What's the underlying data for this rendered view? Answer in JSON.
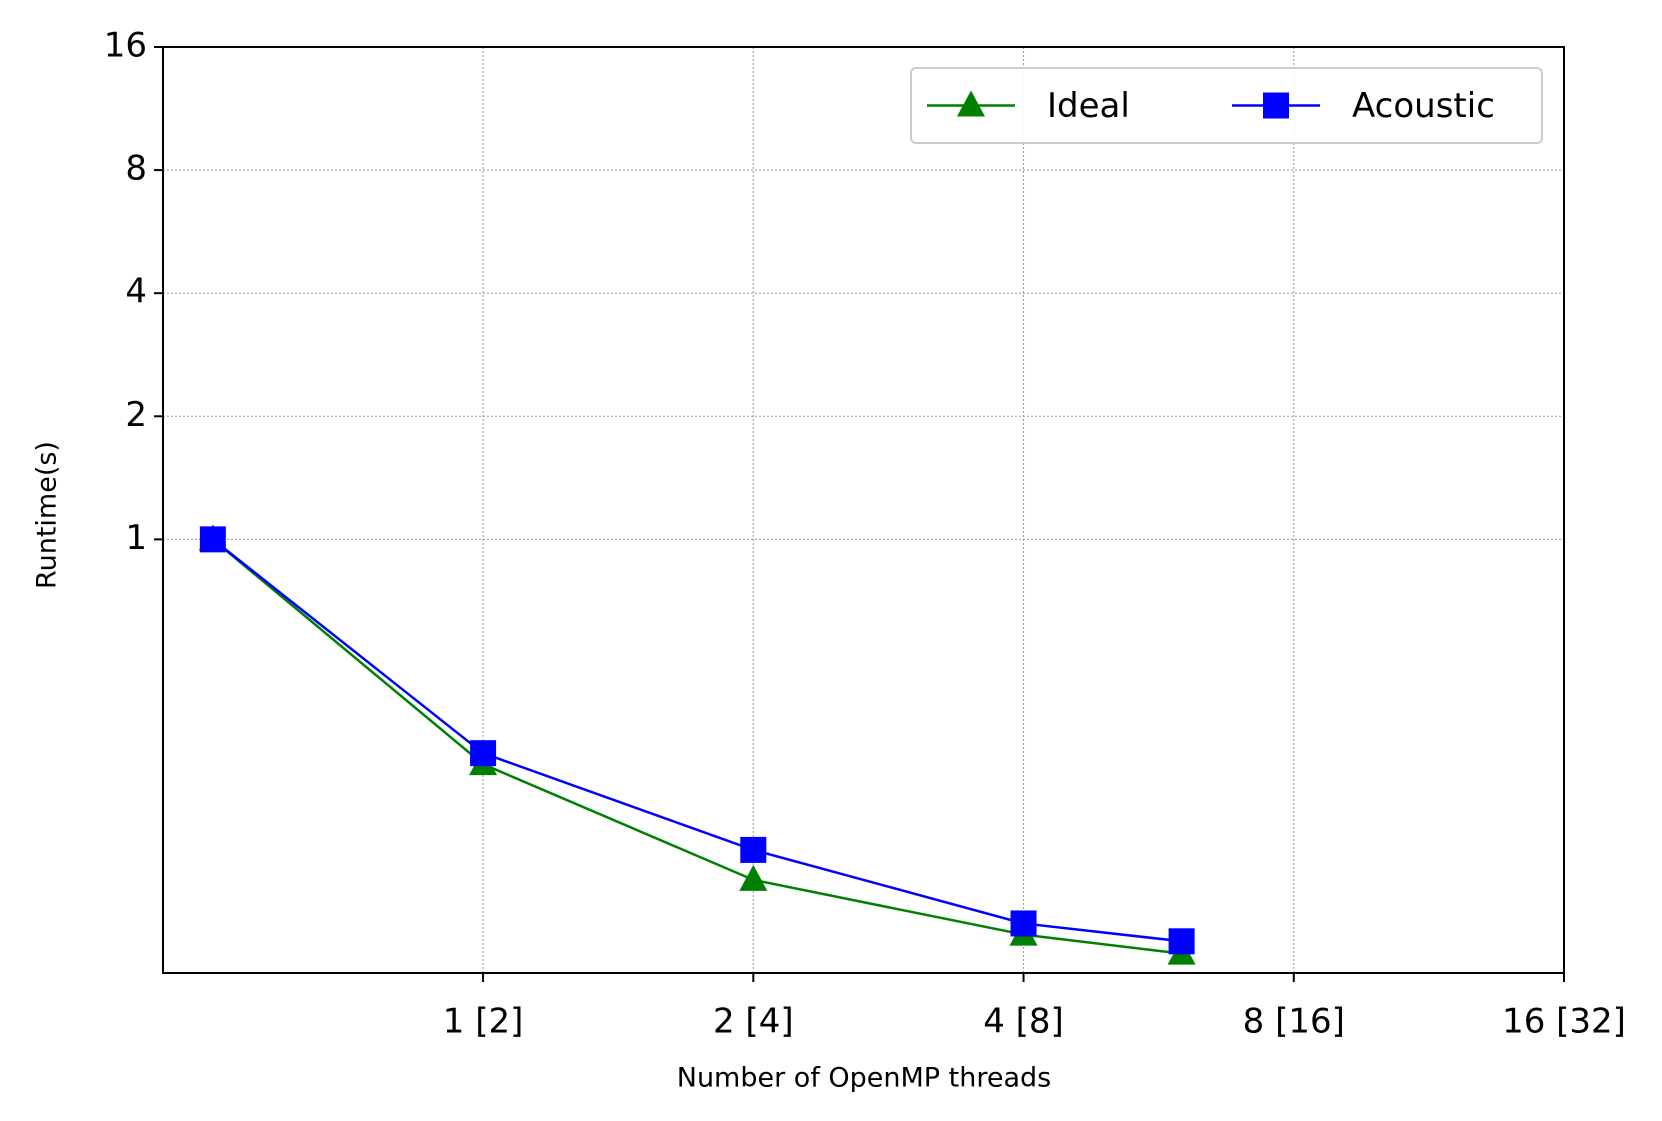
{
  "chart_data": {
    "type": "line",
    "x_label": "Number of OpenMP threads",
    "y_label": "Runtime(s)",
    "x_log": true,
    "y_log": true,
    "grid": true,
    "legend": "upper right",
    "xlim": [
      0.44,
      16
    ],
    "ylim": [
      0.087,
      16
    ],
    "xticks": [
      {
        "value": 1,
        "label": "1 [2]"
      },
      {
        "value": 2,
        "label": "2 [4]"
      },
      {
        "value": 4,
        "label": "4 [8]"
      },
      {
        "value": 8,
        "label": "8 [16]"
      },
      {
        "value": 16,
        "label": "16 [32]"
      }
    ],
    "yticks": [
      1,
      2,
      4,
      8,
      16
    ],
    "x": [
      0.5,
      1,
      2,
      4,
      6
    ],
    "series": [
      {
        "name": "Ideal",
        "color": "#008000",
        "marker": "triangle",
        "values": [
          1,
          0.282,
          0.147,
          0.108,
          0.097
        ]
      },
      {
        "name": "Acoustic",
        "color": "#0000ff",
        "marker": "square",
        "values": [
          1,
          0.3,
          0.174,
          0.115,
          0.104
        ]
      }
    ]
  }
}
